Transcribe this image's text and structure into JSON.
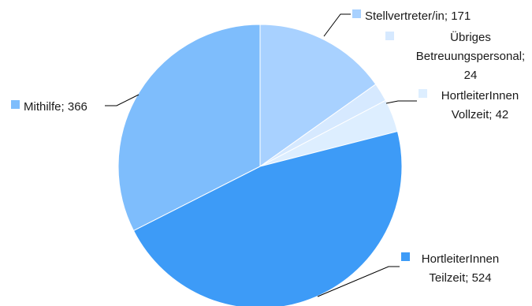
{
  "chart_data": {
    "type": "pie",
    "title": "",
    "slices": [
      {
        "name": "Stellvertreter/in",
        "value": 171,
        "label_lines": [
          "Stellvertreter/in; 171"
        ],
        "color": "#a8d1ff"
      },
      {
        "name": "Übriges Betreuungspersonal",
        "value": 24,
        "label_lines": [
          "Übriges",
          "Betreuungspersonal;",
          "24"
        ],
        "color": "#d6e9ff"
      },
      {
        "name": "HortleiterInnen Vollzeit",
        "value": 42,
        "label_lines": [
          "HortleiterInnen",
          "Vollzeit; 42"
        ],
        "color": "#ddeeff"
      },
      {
        "name": "HortleiterInnen Teilzeit",
        "value": 524,
        "label_lines": [
          "HortleiterInnen",
          "Teilzeit; 524"
        ],
        "color": "#3d9bf7"
      },
      {
        "name": "Mithilfe",
        "value": 366,
        "label_lines": [
          "Mithilfe; 366"
        ],
        "color": "#7ebdfc"
      }
    ],
    "legend": "labels next to slices with swatches"
  }
}
